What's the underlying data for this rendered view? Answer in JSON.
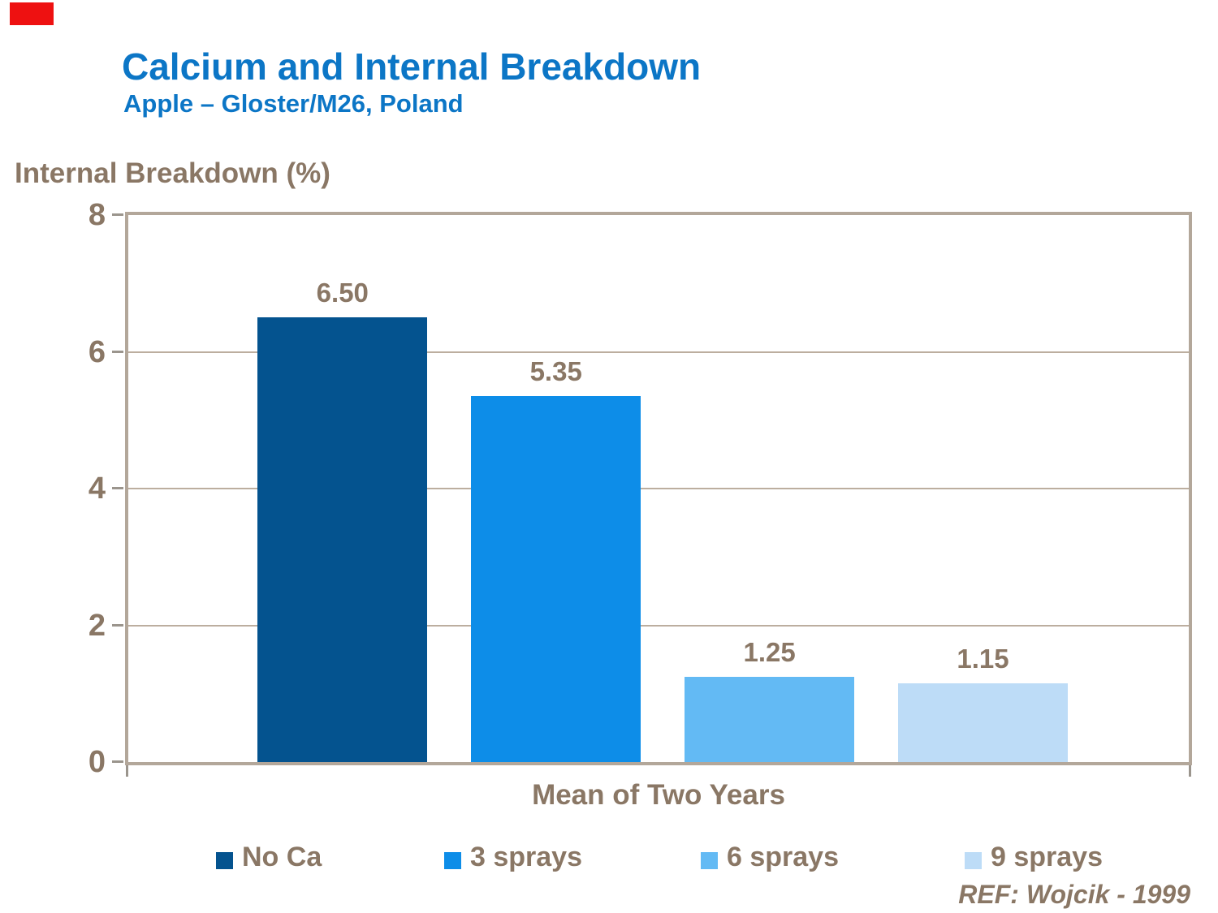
{
  "slide": {
    "title": "Calcium and Internal Breakdown",
    "subtitle": "Apple – Gloster/M26, Poland",
    "reference": "REF: Wojcik - 1999"
  },
  "colors": {
    "title_blue": "#0c76c6",
    "text_brown": "#8a7765",
    "frame_tan": "#b3a79a",
    "gridline_tan": "#bcae9f",
    "tick_gray": "#9b958d",
    "red_mark": "#ee1111"
  },
  "chart_data": {
    "type": "bar",
    "title": "Calcium and Internal Breakdown",
    "subtitle": "Apple – Gloster/M26, Poland",
    "ylabel": "Internal Breakdown (%)",
    "xlabel": "Mean of Two Years",
    "categories": [
      "Mean of Two Years"
    ],
    "series": [
      {
        "name": "No Ca",
        "values": [
          6.5
        ],
        "color": "#04538f"
      },
      {
        "name": "3 sprays",
        "values": [
          5.35
        ],
        "color": "#0d8de8"
      },
      {
        "name": "6 sprays",
        "values": [
          1.25
        ],
        "color": "#63baf4"
      },
      {
        "name": "9 sprays",
        "values": [
          1.15
        ],
        "color": "#bddcf7"
      }
    ],
    "data_labels": [
      "6.50",
      "5.35",
      "1.25",
      "1.15"
    ],
    "ylim": [
      0,
      8
    ],
    "yticks": [
      0,
      2,
      4,
      6,
      8
    ],
    "grid": true,
    "legend_position": "bottom"
  }
}
